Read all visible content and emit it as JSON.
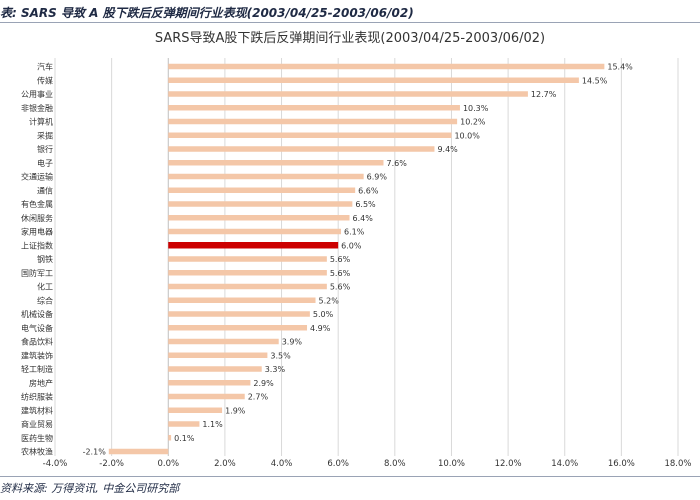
{
  "header": {
    "caption": "表: SARS 导致 A 股下跌后反弹期间行业表现(2003/04/25-2003/06/02)"
  },
  "footer": {
    "source": "资料来源: 万得资讯, 中金公司研究部"
  },
  "colors": {
    "bar": "#f4c7a8",
    "highlight": "#cc0000",
    "grid": "#d9d9d9",
    "axis": "#bfbfbf"
  },
  "chart_data": {
    "type": "bar",
    "orientation": "horizontal",
    "title": "SARS导致A股下跌后反弹期间行业表现(2003/04/25-2003/06/02)",
    "categories": [
      "汽车",
      "传媒",
      "公用事业",
      "非银金融",
      "计算机",
      "采掘",
      "银行",
      "电子",
      "交通运输",
      "通信",
      "有色金属",
      "休闲服务",
      "家用电器",
      "上证指数",
      "钢铁",
      "国防军工",
      "化工",
      "综合",
      "机械设备",
      "电气设备",
      "食品饮料",
      "建筑装饰",
      "轻工制造",
      "房地产",
      "纺织服装",
      "建筑材料",
      "商业贸易",
      "医药生物",
      "农林牧渔"
    ],
    "values": [
      15.4,
      14.5,
      12.7,
      10.3,
      10.2,
      10.0,
      9.4,
      7.6,
      6.9,
      6.6,
      6.5,
      6.4,
      6.1,
      6.0,
      5.6,
      5.6,
      5.6,
      5.2,
      5.0,
      4.9,
      3.9,
      3.5,
      3.3,
      2.9,
      2.7,
      1.9,
      1.1,
      0.1,
      -2.1
    ],
    "value_labels": [
      "15.4%",
      "14.5%",
      "12.7%",
      "10.3%",
      "10.2%",
      "10.0%",
      "9.4%",
      "7.6%",
      "6.9%",
      "6.6%",
      "6.5%",
      "6.4%",
      "6.1%",
      "6.0%",
      "5.6%",
      "5.6%",
      "5.6%",
      "5.2%",
      "5.0%",
      "4.9%",
      "3.9%",
      "3.5%",
      "3.3%",
      "2.9%",
      "2.7%",
      "1.9%",
      "1.1%",
      "0.1%",
      "-2.1%"
    ],
    "highlight_category": "上证指数",
    "xlim": [
      -4,
      18
    ],
    "xticks": [
      -4,
      -2,
      0,
      2,
      4,
      6,
      8,
      10,
      12,
      14,
      16,
      18
    ],
    "xtick_labels": [
      "-4.0%",
      "-2.0%",
      "0.0%",
      "2.0%",
      "4.0%",
      "6.0%",
      "8.0%",
      "10.0%",
      "12.0%",
      "14.0%",
      "16.0%",
      "18.0%"
    ],
    "grid": "vertical",
    "legend": "none"
  }
}
